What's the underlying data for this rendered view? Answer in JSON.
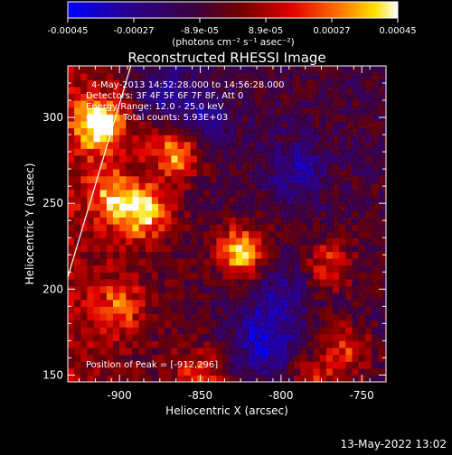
{
  "colorbar": {
    "ticks": [
      "-0.00045",
      "-0.00027",
      "-8.9e-05",
      "8.9e-05",
      "0.00027",
      "0.00045"
    ],
    "units": "(photons cm⁻² s⁻¹ asec⁻²)",
    "range": [
      -0.00045,
      0.00045
    ],
    "colors": [
      "#0000ff",
      "#2a0090",
      "#3a0040",
      "#700000",
      "#e00000",
      "#ff7000",
      "#ffe000",
      "#ffffff"
    ]
  },
  "chart_data": {
    "type": "heatmap",
    "title": "Reconstructed RHESSI Image",
    "xlabel": "Heliocentric X (arcsec)",
    "ylabel": "Heliocentric Y (arcsec)",
    "xlim": [
      -932,
      -735
    ],
    "ylim": [
      146,
      330
    ],
    "x_ticks": [
      -900,
      -850,
      -800,
      -750
    ],
    "y_ticks": [
      150,
      200,
      250,
      300
    ],
    "x_tick_labels": [
      "-900",
      "-850",
      "-800",
      "-750"
    ],
    "y_tick_labels": [
      "150",
      "200",
      "250",
      "300"
    ],
    "annotations": [
      "4-May-2013 14:52:28.000 to 14:56:28.000",
      "Detectors: 3F 4F 5F 6F 7F 8F, Att 0",
      "Energy Range: 12.0 - 25.0 keV",
      "Clean    Total counts: 5.93E+03"
    ],
    "peak_label": "Position of Peak = [-912,296]",
    "peak_position": [
      -912,
      296
    ],
    "limb_line": [
      [
        -932,
        207
      ],
      [
        -893,
        330
      ]
    ],
    "hotspots": [
      {
        "x": -912,
        "y": 296,
        "amp": 1.0
      },
      {
        "x": -825,
        "y": 222,
        "amp": 0.95
      },
      {
        "x": -865,
        "y": 280,
        "amp": 0.8
      },
      {
        "x": -885,
        "y": 245,
        "amp": 0.85
      },
      {
        "x": -905,
        "y": 255,
        "amp": 0.6
      },
      {
        "x": -900,
        "y": 190,
        "amp": 0.5
      },
      {
        "x": -850,
        "y": 150,
        "amp": 0.55
      },
      {
        "x": -770,
        "y": 215,
        "amp": 0.55
      },
      {
        "x": -760,
        "y": 165,
        "amp": 0.55
      },
      {
        "x": -780,
        "y": 145,
        "amp": 0.5
      }
    ],
    "coldspots": [
      {
        "x": -875,
        "y": 317,
        "amp": 0.6
      },
      {
        "x": -810,
        "y": 170,
        "amp": 0.7
      },
      {
        "x": -790,
        "y": 270,
        "amp": 0.5
      },
      {
        "x": -850,
        "y": 300,
        "amp": 0.5
      },
      {
        "x": -800,
        "y": 200,
        "amp": 0.4
      }
    ]
  },
  "footer": {
    "timestamp": "13-May-2022 13:02"
  }
}
